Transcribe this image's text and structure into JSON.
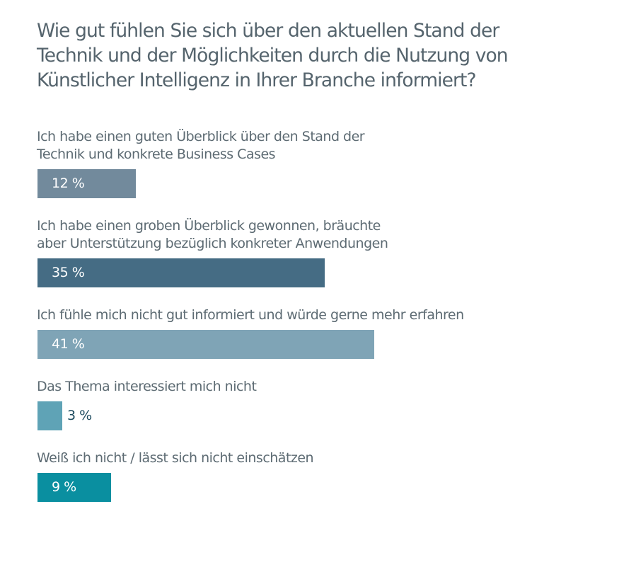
{
  "chart_data": {
    "type": "bar",
    "orientation": "horizontal",
    "title": "Wie gut fühlen Sie sich über den aktuellen Stand der Technik und der Möglichkeiten durch die Nutzung von Künstlicher Intelligenz in Ihrer Branche informiert?",
    "title_lines": [
      "Wie gut fühlen Sie sich über den aktuellen Stand der",
      "Technik und der Möglichkeiten durch die Nutzung von",
      "Künstlicher Intelligenz in Ihrer Branche informiert?"
    ],
    "unit": "%",
    "xlim": [
      0,
      100
    ],
    "grid": false,
    "legend": "none",
    "categories": [
      {
        "label_lines": [
          "Ich habe einen guten Überblick über den Stand der",
          "Technik und konkrete Business Cases"
        ],
        "value": 12,
        "value_label": "12 %",
        "color": "#728a9c"
      },
      {
        "label_lines": [
          "Ich habe einen groben Überblick gewonnen, bräuchte",
          "aber Unterstützung bezüglich konkreter Anwendungen"
        ],
        "value": 35,
        "value_label": "35 %",
        "color": "#456c84"
      },
      {
        "label_lines": [
          "Ich fühle mich nicht gut informiert und würde gerne mehr erfahren"
        ],
        "value": 41,
        "value_label": "41 %",
        "color": "#7fa4b6"
      },
      {
        "label_lines": [
          "Das Thema interessiert mich nicht"
        ],
        "value": 3,
        "value_label": "3 %",
        "color": "#5fa3b6"
      },
      {
        "label_lines": [
          "Weiß ich nicht / lässt sich nicht einschätzen"
        ],
        "value": 9,
        "value_label": "9 %",
        "color": "#0a8fa0"
      }
    ]
  }
}
